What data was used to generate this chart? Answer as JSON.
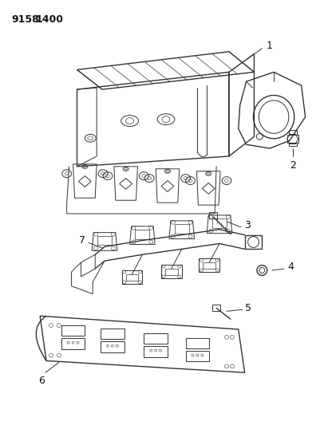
{
  "title_part1": "9158",
  "title_part2": "1400",
  "background_color": "#ffffff",
  "line_color": "#333333",
  "label_color": "#111111",
  "fig_width": 4.11,
  "fig_height": 5.33,
  "dpi": 100
}
